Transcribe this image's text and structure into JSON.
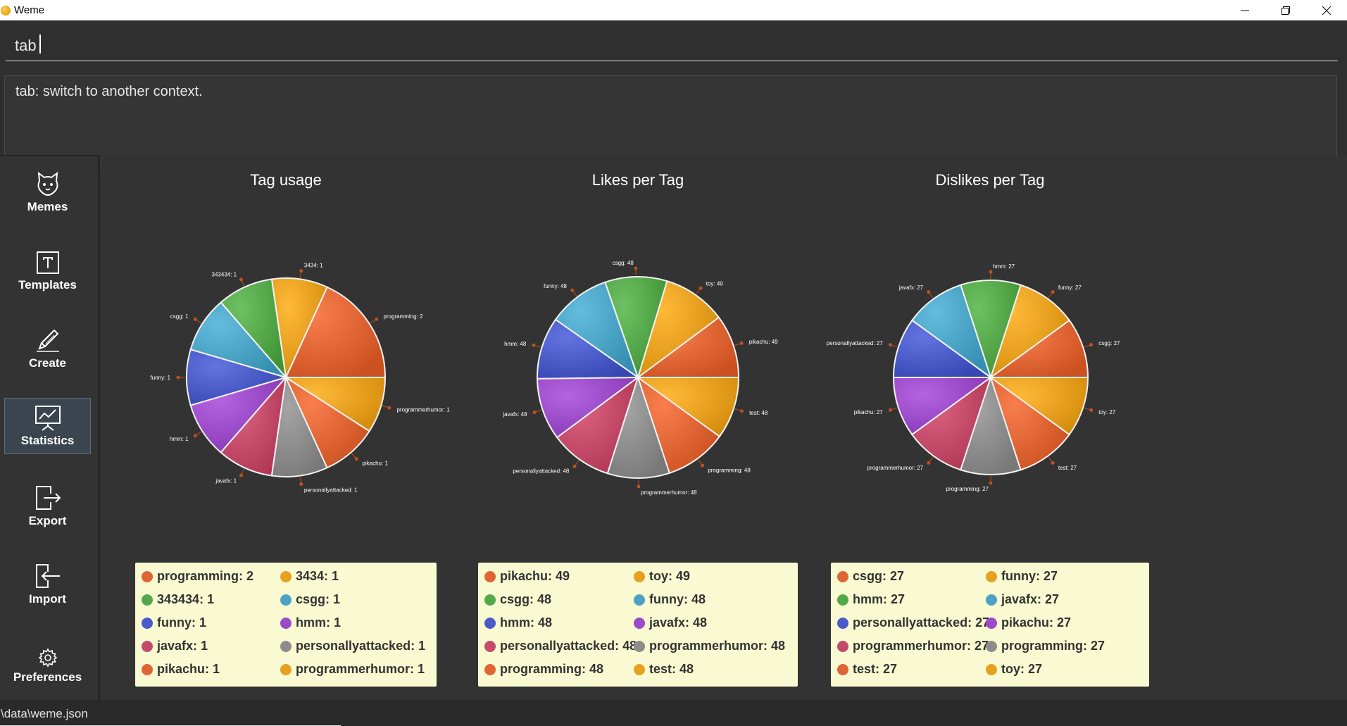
{
  "window": {
    "title": "Weme"
  },
  "command": {
    "value": "tab",
    "result": "tab: switch to another context."
  },
  "sidebar": {
    "items": [
      {
        "label": "Memes",
        "icon": "cat-icon"
      },
      {
        "label": "Templates",
        "icon": "template-icon"
      },
      {
        "label": "Create",
        "icon": "pencil-icon"
      },
      {
        "label": "Statistics",
        "icon": "chart-icon",
        "active": true
      },
      {
        "label": "Export",
        "icon": "export-icon"
      },
      {
        "label": "Import",
        "icon": "import-icon"
      },
      {
        "label": "Preferences",
        "icon": "gear-icon"
      }
    ]
  },
  "colors": {
    "orange_red": "#e06535",
    "amber": "#e8a020",
    "green": "#55a84a",
    "teal": "#4aa3c4",
    "blue": "#4a5bc8",
    "purple": "#9b4bc8",
    "crimson": "#c44a6a",
    "gray": "#8c8c8c"
  },
  "chart_data": [
    {
      "type": "pie",
      "title": "Tag usage",
      "slices": [
        {
          "label": "programming: 2",
          "value": 2,
          "color": "#e06535"
        },
        {
          "label": "3434: 1",
          "value": 1,
          "color": "#e8a020"
        },
        {
          "label": "343434: 1",
          "value": 1,
          "color": "#55a84a"
        },
        {
          "label": "csgg: 1",
          "value": 1,
          "color": "#4aa3c4"
        },
        {
          "label": "funny: 1",
          "value": 1,
          "color": "#4a5bc8"
        },
        {
          "label": "hmm: 1",
          "value": 1,
          "color": "#9b4bc8"
        },
        {
          "label": "javafx: 1",
          "value": 1,
          "color": "#c44a6a"
        },
        {
          "label": "personallyattacked: 1",
          "value": 1,
          "color": "#8c8c8c"
        },
        {
          "label": "pikachu: 1",
          "value": 1,
          "color": "#e06535"
        },
        {
          "label": "programmerhumor: 1",
          "value": 1,
          "color": "#e8a020"
        }
      ]
    },
    {
      "type": "pie",
      "title": "Likes per Tag",
      "slices": [
        {
          "label": "pikachu: 49",
          "value": 49,
          "color": "#e06535"
        },
        {
          "label": "toy: 49",
          "value": 49,
          "color": "#e8a020"
        },
        {
          "label": "csgg: 48",
          "value": 48,
          "color": "#55a84a"
        },
        {
          "label": "funny: 48",
          "value": 48,
          "color": "#4aa3c4"
        },
        {
          "label": "hmm: 48",
          "value": 48,
          "color": "#4a5bc8"
        },
        {
          "label": "javafx: 48",
          "value": 48,
          "color": "#9b4bc8"
        },
        {
          "label": "personallyattacked: 48",
          "value": 48,
          "color": "#c44a6a"
        },
        {
          "label": "programmerhumor: 48",
          "value": 48,
          "color": "#8c8c8c"
        },
        {
          "label": "programming: 48",
          "value": 48,
          "color": "#e06535"
        },
        {
          "label": "test: 48",
          "value": 48,
          "color": "#e8a020"
        }
      ]
    },
    {
      "type": "pie",
      "title": "Dislikes per Tag",
      "slices": [
        {
          "label": "csgg: 27",
          "value": 27,
          "color": "#e06535"
        },
        {
          "label": "funny: 27",
          "value": 27,
          "color": "#e8a020"
        },
        {
          "label": "hmm: 27",
          "value": 27,
          "color": "#55a84a"
        },
        {
          "label": "javafx: 27",
          "value": 27,
          "color": "#4aa3c4"
        },
        {
          "label": "personallyattacked: 27",
          "value": 27,
          "color": "#4a5bc8"
        },
        {
          "label": "pikachu: 27",
          "value": 27,
          "color": "#9b4bc8"
        },
        {
          "label": "programmerhumor: 27",
          "value": 27,
          "color": "#c44a6a"
        },
        {
          "label": "programming: 27",
          "value": 27,
          "color": "#8c8c8c"
        },
        {
          "label": "test: 27",
          "value": 27,
          "color": "#e06535"
        },
        {
          "label": "toy: 27",
          "value": 27,
          "color": "#e8a020"
        }
      ]
    }
  ],
  "status": {
    "path": "\\data\\weme.json"
  }
}
